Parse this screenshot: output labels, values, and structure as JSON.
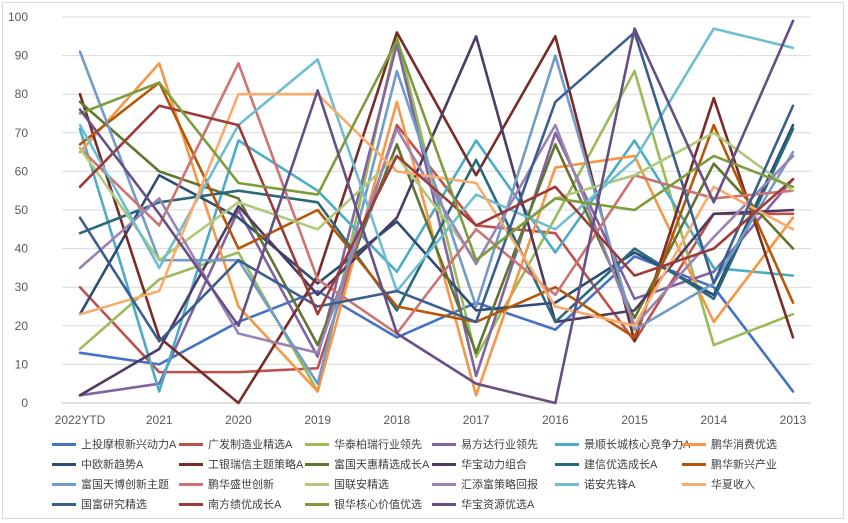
{
  "chart_data": {
    "type": "line",
    "categories": [
      "2022YTD",
      "2021",
      "2020",
      "2019",
      "2018",
      "2017",
      "2016",
      "2015",
      "2014",
      "2013"
    ],
    "ylim": [
      0,
      100
    ],
    "yticks": [
      "0",
      "10",
      "20",
      "30",
      "40",
      "50",
      "60",
      "70",
      "80",
      "90",
      "100"
    ],
    "grid": true,
    "legend_position": "bottom",
    "series": [
      {
        "name": "上投摩根新兴动力A",
        "color": "#4472C4",
        "values": [
          13,
          10,
          21,
          29,
          17,
          26,
          19,
          38,
          30,
          3
        ]
      },
      {
        "name": "广发制造业精选A",
        "color": "#C0504D",
        "values": [
          30,
          8,
          8,
          9,
          72,
          46,
          44,
          16,
          49,
          49
        ]
      },
      {
        "name": "华泰柏瑞行业领先",
        "color": "#9BBB59",
        "values": [
          14,
          32,
          39,
          3,
          95,
          12,
          48,
          86,
          15,
          23
        ]
      },
      {
        "name": "易方达行业领先",
        "color": "#8064A2",
        "values": [
          2,
          5,
          50,
          12,
          93,
          7,
          70,
          27,
          34,
          58
        ]
      },
      {
        "name": "景顺长城核心竞争力A",
        "color": "#4BACC6",
        "values": [
          71,
          3,
          68,
          55,
          34,
          68,
          39,
          68,
          35,
          33
        ]
      },
      {
        "name": "鹏华消费优选",
        "color": "#F79646",
        "values": [
          65,
          88,
          25,
          3,
          78,
          2,
          61,
          64,
          21,
          48
        ]
      },
      {
        "name": "中欧新趋势A",
        "color": "#2C4D75",
        "values": [
          23,
          59,
          48,
          31,
          47,
          24,
          26,
          39,
          28,
          72
        ]
      },
      {
        "name": "工银瑞信主题策略A",
        "color": "#772C2A",
        "values": [
          80,
          17,
          0,
          33,
          96,
          59,
          95,
          16,
          79,
          17
        ]
      },
      {
        "name": "富国天惠精选成长A",
        "color": "#5F7530",
        "values": [
          78,
          60,
          53,
          15,
          67,
          13,
          67,
          22,
          62,
          40
        ]
      },
      {
        "name": "华宝动力组合",
        "color": "#4D3B62",
        "values": [
          2,
          14,
          51,
          28,
          48,
          95,
          21,
          24,
          49,
          50
        ]
      },
      {
        "name": "建信优选成长A",
        "color": "#276A7C",
        "values": [
          44,
          52,
          55,
          52,
          24,
          63,
          21,
          40,
          27,
          71
        ]
      },
      {
        "name": "鹏华新兴产业",
        "color": "#B65708",
        "values": [
          67,
          83,
          40,
          50,
          25,
          21,
          30,
          17,
          72,
          26
        ]
      },
      {
        "name": "富国天博创新主题",
        "color": "#729ACA",
        "values": [
          91,
          37,
          37,
          5,
          86,
          25,
          90,
          19,
          31,
          65
        ]
      },
      {
        "name": "鹏华盛世创新",
        "color": "#CD7371",
        "values": [
          66,
          46,
          88,
          32,
          18,
          45,
          28,
          59,
          53,
          55
        ]
      },
      {
        "name": "国联安精选",
        "color": "#AFC97A",
        "values": [
          66,
          37,
          52,
          45,
          64,
          37,
          53,
          59,
          70,
          55
        ]
      },
      {
        "name": "汇添富策略回报",
        "color": "#9983B5",
        "values": [
          35,
          53,
          18,
          13,
          71,
          36,
          72,
          20,
          43,
          64
        ]
      },
      {
        "name": "诺安先锋A",
        "color": "#6FBDD1",
        "values": [
          72,
          35,
          72,
          89,
          29,
          54,
          45,
          63,
          97,
          92
        ]
      },
      {
        "name": "华夏收入",
        "color": "#F9AB6B",
        "values": [
          23,
          29,
          80,
          80,
          60,
          57,
          25,
          20,
          56,
          45
        ]
      },
      {
        "name": "国富研究精选",
        "color": "#3A5F8F",
        "values": [
          48,
          16,
          37,
          25,
          29,
          21,
          78,
          96,
          31,
          77
        ]
      },
      {
        "name": "南方绩优成长A",
        "color": "#9E3B38",
        "values": [
          56,
          77,
          72,
          23,
          64,
          46,
          56,
          33,
          40,
          58
        ]
      },
      {
        "name": "银华核心价值优选",
        "color": "#7D9D3D",
        "values": [
          75,
          83,
          57,
          54,
          94,
          37,
          53,
          50,
          64,
          56
        ]
      },
      {
        "name": "华宝资源优选A",
        "color": "#674F85",
        "values": [
          76,
          49,
          20,
          81,
          18,
          5,
          0,
          97,
          52,
          99
        ]
      }
    ]
  }
}
